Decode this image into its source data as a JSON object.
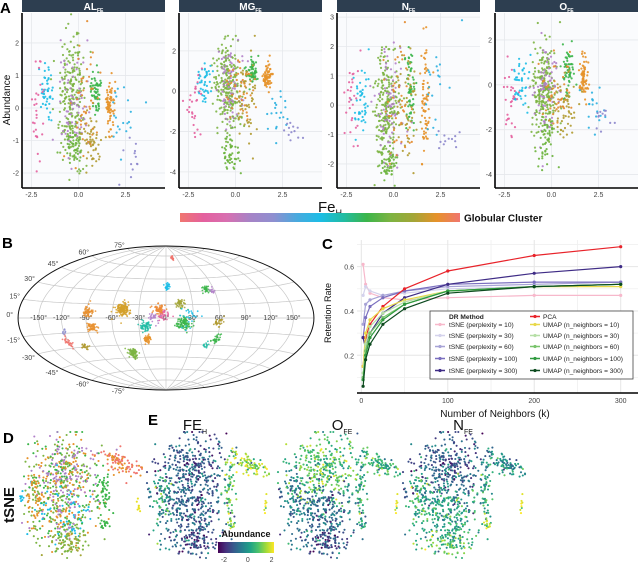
{
  "panel_labels": {
    "a": "A",
    "b": "B",
    "c": "C",
    "d": "D",
    "e": "E"
  },
  "chart_data": [
    {
      "type": "scatter",
      "panel": "A",
      "ylabel": "Abundance",
      "xlabel_main": "Fe",
      "xlabel_sub": "H",
      "legend_title": "Globular Cluster",
      "xlim": [
        -3,
        4.6
      ],
      "xticks": [
        "-2.5",
        "0.0",
        "2.5"
      ],
      "xtick_values": [
        -2.5,
        0,
        2.5
      ],
      "facets": [
        {
          "name": "AL",
          "sub": "FE",
          "ylim": [
            -2.46,
            2.92
          ],
          "yticks": [
            -2,
            -1,
            0,
            1,
            2
          ],
          "ytick_labels": [
            "-2",
            "-1",
            "0",
            "1",
            "2"
          ]
        },
        {
          "name": "MG",
          "sub": "FE",
          "ylim": [
            -4.8,
            3.88
          ],
          "yticks": [
            -4,
            -2,
            0,
            2
          ],
          "ytick_labels": [
            "-4",
            "-2",
            "0",
            "2"
          ]
        },
        {
          "name": "N",
          "sub": "FE",
          "ylim": [
            -2.82,
            3.14
          ],
          "yticks": [
            -2,
            -1,
            0,
            1,
            2,
            3
          ],
          "ytick_labels": [
            "-2",
            "-1",
            "0",
            "1",
            "2",
            "3"
          ]
        },
        {
          "name": "O",
          "sub": "FE",
          "ylim": [
            -4.6,
            3.2
          ],
          "yticks": [
            -4,
            -2,
            0,
            2
          ],
          "ytick_labels": [
            "-4",
            "-2",
            "0",
            "2"
          ]
        }
      ],
      "clusters": [
        {
          "color": "#7cb442",
          "x": -0.4,
          "sx": 0.35,
          "n": 230,
          "y": [
            0.3,
            0.3,
            0.0,
            -0.2
          ],
          "sy": [
            1.0,
            1.1,
            1.0,
            1.1
          ]
        },
        {
          "color": "#b17fc9",
          "x": -0.3,
          "sx": 0.4,
          "n": 70,
          "y": [
            0.2,
            0.2,
            0.0,
            -0.2
          ],
          "sy": [
            0.9,
            1.0,
            0.9,
            1.0
          ]
        },
        {
          "color": "#1cbde6",
          "x": -1.7,
          "sx": 0.2,
          "n": 45,
          "y": [
            0.5,
            0.5,
            0.2,
            0.0
          ],
          "sy": [
            0.5,
            0.5,
            0.6,
            0.6
          ]
        },
        {
          "color": "#e4609e",
          "x": -2.2,
          "sx": 0.2,
          "n": 28,
          "y": [
            0.0,
            -0.5,
            0.0,
            -0.5
          ],
          "sy": [
            0.9,
            0.9,
            0.8,
            0.9
          ]
        },
        {
          "color": "#3bb54a",
          "x": 0.9,
          "sx": 0.15,
          "n": 60,
          "y": [
            0.5,
            1.0,
            0.5,
            0.7
          ],
          "sy": [
            0.3,
            0.3,
            0.8,
            0.6
          ]
        },
        {
          "color": "#e6922a",
          "x": 1.7,
          "sx": 0.12,
          "n": 70,
          "y": [
            0.0,
            0.7,
            0.0,
            0.3
          ],
          "sy": [
            0.4,
            0.3,
            0.9,
            0.5
          ]
        },
        {
          "color": "#b09a30",
          "x": 0.7,
          "sx": 0.3,
          "n": 55,
          "y": [
            -1.1,
            -0.3,
            0.0,
            -1.0
          ],
          "sy": [
            0.4,
            1.0,
            1.0,
            1.0
          ]
        },
        {
          "color": "#2ab0e0",
          "x": 2.3,
          "sx": 0.4,
          "n": 20,
          "y": [
            -0.3,
            -1.2,
            0.5,
            -1.0
          ],
          "sy": [
            0.6,
            0.5,
            1.0,
            0.5
          ]
        },
        {
          "color": "#8c86cc",
          "x": 2.9,
          "sx": 0.3,
          "n": 12,
          "y": [
            -1.5,
            -2.0,
            -1.2,
            -1.6
          ],
          "sy": [
            0.3,
            0.3,
            0.3,
            0.3
          ]
        },
        {
          "color": "#6ab23c",
          "x": -0.3,
          "sx": 0.25,
          "n": 50,
          "y": [
            -1.2,
            -3.0,
            -2.0,
            -2.5
          ],
          "sy": [
            0.3,
            0.6,
            0.3,
            0.7
          ]
        },
        {
          "color": "#e28a2c",
          "x": 0.3,
          "sx": 0.4,
          "n": 45,
          "y": [
            0.0,
            0.0,
            0.0,
            -0.3
          ],
          "sy": [
            1.0,
            0.8,
            1.0,
            0.8
          ]
        }
      ],
      "colorbar": [
        "#f0766f",
        "#e4609e",
        "#d86fb0",
        "#a683c6",
        "#8f8fd0",
        "#4aa9de",
        "#1cbde6",
        "#21bca4",
        "#3bb54a",
        "#7cb442",
        "#a3a637",
        "#e6922a",
        "#f0766f"
      ]
    },
    {
      "type": "scatter",
      "panel": "B",
      "projection": "hammer-aitoff",
      "lon_labels": [
        "-150°",
        "-120°",
        "-90°",
        "-60°",
        "-30°",
        "0°",
        "30°",
        "60°",
        "90°",
        "120°",
        "150°"
      ],
      "lon_values": [
        -150,
        -120,
        -90,
        -60,
        -30,
        0,
        30,
        60,
        90,
        120,
        150
      ],
      "lat_labels": [
        "75°",
        "60°",
        "45°",
        "30°",
        "15°",
        "0°",
        "-15°",
        "-30°",
        "-45°",
        "-60°",
        "-75°"
      ],
      "lat_values": [
        75,
        60,
        45,
        30,
        15,
        0,
        -15,
        -30,
        -45,
        -60,
        -75
      ],
      "clusters": [
        {
          "color": "#d4a02a",
          "lon": -48,
          "lat": 10,
          "s": 4,
          "n": 160
        },
        {
          "color": "#e89030",
          "lon": -88,
          "lat": 6,
          "s": 3,
          "n": 60
        },
        {
          "color": "#e89030",
          "lon": -84,
          "lat": -10,
          "s": 3,
          "n": 60
        },
        {
          "color": "#ec8a35",
          "lon": -8,
          "lat": 10,
          "s": 3,
          "n": 70
        },
        {
          "color": "#1cbde6",
          "lon": 2,
          "lat": 36,
          "s": 2,
          "n": 35
        },
        {
          "color": "#a3a637",
          "lon": 16,
          "lat": 16,
          "s": 2.5,
          "n": 45
        },
        {
          "color": "#3bb54a",
          "lon": 50,
          "lat": 32,
          "s": 2.5,
          "n": 30
        },
        {
          "color": "#b17fc9",
          "lon": 57,
          "lat": 30,
          "s": 1.5,
          "n": 12
        },
        {
          "color": "#b09a30",
          "lon": 58,
          "lat": -5,
          "s": 2.5,
          "n": 30
        },
        {
          "color": "#3bb54a",
          "lon": 60,
          "lat": -23,
          "s": 2.5,
          "n": 35
        },
        {
          "color": "#21bca4",
          "lon": 50,
          "lat": -30,
          "s": 2,
          "n": 15
        },
        {
          "color": "#3bb54a",
          "lon": 20,
          "lat": -6,
          "s": 4,
          "n": 110
        },
        {
          "color": "#21bca4",
          "lon": -24,
          "lat": -8,
          "s": 3,
          "n": 60
        },
        {
          "color": "#e6922a",
          "lon": -22,
          "lat": -24,
          "s": 2.5,
          "n": 45
        },
        {
          "color": "#7cb442",
          "lon": -44,
          "lat": -40,
          "s": 3,
          "n": 80
        },
        {
          "color": "#f0766f",
          "lon": -122,
          "lat": -24,
          "s": 3,
          "n": 30
        },
        {
          "color": "#b09a30",
          "lon": -102,
          "lat": -30,
          "s": 2.5,
          "n": 25
        },
        {
          "color": "#8f8fd0",
          "lon": -118,
          "lat": -13,
          "s": 2,
          "n": 10
        },
        {
          "color": "#f0766f",
          "lon": 18,
          "lat": 72,
          "s": 1.5,
          "n": 30
        },
        {
          "color": "#e4609e",
          "lon": -2,
          "lat": 3,
          "s": 3,
          "n": 30
        },
        {
          "color": "#1cbde6",
          "lon": 25,
          "lat": 0,
          "s": 6,
          "n": 25
        },
        {
          "color": "#b17fc9",
          "lon": -12,
          "lat": 0,
          "s": 4,
          "n": 25
        }
      ]
    },
    {
      "type": "line",
      "panel": "C",
      "xlabel": "Number of Neighbors (k)",
      "ylabel": "Retention Rate",
      "xlim": [
        -5,
        320
      ],
      "ylim": [
        0.03,
        0.72
      ],
      "xticks": [
        0,
        100,
        200,
        300
      ],
      "xtick_labels": [
        "0",
        "100",
        "200",
        "300"
      ],
      "yticks": [
        0.2,
        0.4,
        0.6
      ],
      "ytick_labels": [
        "0.2",
        "0.4",
        "0.6"
      ],
      "legend_title": "DR Method",
      "legend_position": "bottom-right",
      "x": [
        2,
        5,
        10,
        25,
        50,
        100,
        200,
        300
      ],
      "series": [
        {
          "name": "tSNE (perplexity = 10)",
          "color": "#f7b8cb",
          "values": [
            0.61,
            0.52,
            0.48,
            0.46,
            0.45,
            0.46,
            0.47,
            0.47
          ]
        },
        {
          "name": "tSNE (perplexity = 30)",
          "color": "#d4d2ec",
          "values": [
            0.47,
            0.51,
            0.49,
            0.47,
            0.48,
            0.5,
            0.51,
            0.52
          ]
        },
        {
          "name": "tSNE (perplexity = 60)",
          "color": "#a7a3d6",
          "values": [
            0.34,
            0.43,
            0.45,
            0.47,
            0.49,
            0.51,
            0.52,
            0.53
          ]
        },
        {
          "name": "tSNE (perplexity = 100)",
          "color": "#7b6fbf",
          "values": [
            0.28,
            0.37,
            0.42,
            0.46,
            0.49,
            0.52,
            0.53,
            0.53
          ]
        },
        {
          "name": "tSNE (perplexity = 300)",
          "color": "#3f2c86",
          "values": [
            0.28,
            0.23,
            0.3,
            0.39,
            0.46,
            0.52,
            0.57,
            0.6
          ]
        },
        {
          "name": "PCA",
          "color": "#e8232a",
          "values": [
            0.15,
            0.28,
            0.34,
            0.42,
            0.5,
            0.58,
            0.65,
            0.69
          ]
        },
        {
          "name": "UMAP (n_neighbors = 10)",
          "color": "#e8d84a",
          "values": [
            0.15,
            0.3,
            0.36,
            0.41,
            0.45,
            0.49,
            0.51,
            0.51
          ]
        },
        {
          "name": "UMAP (n_neighbors = 30)",
          "color": "#b6dfa7",
          "values": [
            0.12,
            0.25,
            0.33,
            0.39,
            0.44,
            0.49,
            0.51,
            0.52
          ]
        },
        {
          "name": "UMAP (n_neighbors = 60)",
          "color": "#79c46c",
          "values": [
            0.1,
            0.22,
            0.3,
            0.37,
            0.43,
            0.49,
            0.51,
            0.52
          ]
        },
        {
          "name": "UMAP (n_neighbors = 100)",
          "color": "#2f9a3f",
          "values": [
            0.09,
            0.2,
            0.28,
            0.36,
            0.43,
            0.49,
            0.51,
            0.52
          ]
        },
        {
          "name": "UMAP (n_neighbors = 300)",
          "color": "#0c4a1e",
          "values": [
            0.06,
            0.18,
            0.25,
            0.34,
            0.41,
            0.48,
            0.51,
            0.52
          ]
        }
      ]
    },
    {
      "type": "scatter",
      "panel": "D/E",
      "row_label": "tSNE",
      "panels": [
        {
          "title": "",
          "sub": "",
          "mode": "cluster"
        },
        {
          "title": "FE",
          "sub": "H",
          "mode": "value",
          "means": [
            -1.2,
            -1.0,
            0.3,
            -1.5,
            1.5,
            0.8,
            1.2,
            -0.5,
            1.8
          ]
        },
        {
          "title": "O",
          "sub": "FE",
          "mode": "value",
          "means": [
            0.8,
            -0.8,
            -0.5,
            -1.5,
            0.5,
            0.3,
            0.2,
            -1.0,
            1.8
          ]
        },
        {
          "title": "N",
          "sub": "FE",
          "mode": "value",
          "means": [
            -1.2,
            0.3,
            0.5,
            0.8,
            -0.2,
            0.2,
            1.5,
            -1.0,
            1.8
          ]
        }
      ],
      "blobs": [
        {
          "x": 35,
          "y": 30,
          "sx": 14,
          "sy": 14,
          "n": 330,
          "colors": [
            "#7cb442",
            "#b17fc9",
            "#e6922a",
            "#3bb54a",
            "#a683c6"
          ]
        },
        {
          "x": 36,
          "y": 65,
          "sx": 13,
          "sy": 13,
          "n": 280,
          "colors": [
            "#7cb442",
            "#b17fc9",
            "#1cbde6",
            "#e6922a",
            "#3bb54a"
          ]
        },
        {
          "x": 12,
          "y": 52,
          "sx": 4,
          "sy": 14,
          "n": 70,
          "colors": [
            "#e6922a",
            "#7cb442"
          ]
        },
        {
          "x": 40,
          "y": 88,
          "sx": 9,
          "sy": 5,
          "n": 80,
          "colors": [
            "#7cb442",
            "#a3a637"
          ]
        },
        {
          "x": 82,
          "y": 25,
          "sx": 9,
          "sy": 4,
          "n": 90,
          "colors": [
            "#e6922a",
            "#f0766f"
          ]
        },
        {
          "x": 68,
          "y": 46,
          "sx": 3,
          "sy": 10,
          "n": 55,
          "colors": [
            "#3bb54a"
          ]
        },
        {
          "x": 70,
          "y": 73,
          "sx": 2.5,
          "sy": 2,
          "n": 15,
          "colors": [
            "#3bb54a"
          ]
        },
        {
          "x": 2,
          "y": 50,
          "sx": 0.8,
          "sy": 3,
          "n": 8,
          "colors": [
            "#1cbde6"
          ]
        },
        {
          "x": 97,
          "y": 58,
          "sx": 0.8,
          "sy": 3,
          "n": 8,
          "colors": [
            "#e8e020"
          ]
        }
      ],
      "colorbar": {
        "title": "Abundance",
        "min": -2.5,
        "max": 2.2,
        "tick_labels": [
          "-2",
          "0",
          "2"
        ],
        "tick_values": [
          -2,
          0,
          2
        ]
      }
    }
  ]
}
